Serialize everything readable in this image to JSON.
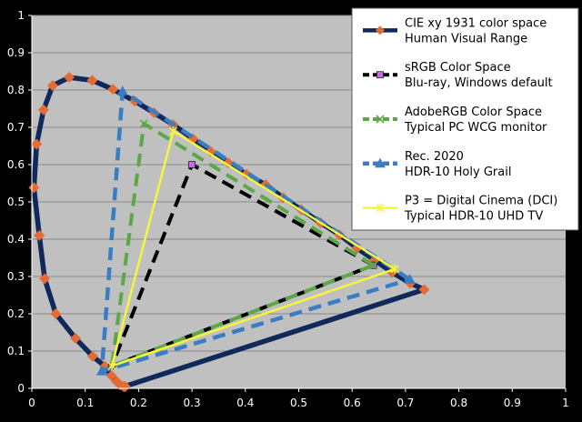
{
  "chart_data": {
    "type": "scatter",
    "title": "",
    "xlabel": "",
    "ylabel": "",
    "xlim": [
      0,
      1
    ],
    "ylim": [
      0,
      1
    ],
    "x_ticks": [
      "0",
      "0.1",
      "0.2",
      "0.3",
      "0.4",
      "0.5",
      "0.6",
      "0.7",
      "0.8",
      "0.9",
      "1"
    ],
    "y_ticks": [
      "0",
      "0.1",
      "0.2",
      "0.3",
      "0.4",
      "0.5",
      "0.6",
      "0.7",
      "0.8",
      "0.9",
      "1"
    ],
    "grid": "horizontal",
    "legend_position": "top-right",
    "background_color": "#000000",
    "plot_area_color": "#c0c0c0",
    "gridline_color": "#8a8a8a",
    "tick_label_color": "#ffffff",
    "series": [
      {
        "name": "CIE xy 1931 color space\nHuman Visual Range",
        "color": "#10285a",
        "marker_color": "#e46c34",
        "marker": "diamond",
        "line_style": "solid",
        "line_width": 5.5,
        "points": [
          [
            0.175,
            0.005
          ],
          [
            0.172,
            0.005
          ],
          [
            0.166,
            0.009
          ],
          [
            0.159,
            0.018
          ],
          [
            0.149,
            0.034
          ],
          [
            0.137,
            0.059
          ],
          [
            0.114,
            0.086
          ],
          [
            0.082,
            0.134
          ],
          [
            0.045,
            0.2
          ],
          [
            0.024,
            0.294
          ],
          [
            0.014,
            0.41
          ],
          [
            0.004,
            0.538
          ],
          [
            0.009,
            0.655
          ],
          [
            0.022,
            0.747
          ],
          [
            0.039,
            0.812
          ],
          [
            0.07,
            0.834
          ],
          [
            0.113,
            0.826
          ],
          [
            0.152,
            0.802
          ],
          [
            0.193,
            0.77
          ],
          [
            0.229,
            0.739
          ],
          [
            0.265,
            0.707
          ],
          [
            0.302,
            0.669
          ],
          [
            0.335,
            0.635
          ],
          [
            0.368,
            0.605
          ],
          [
            0.402,
            0.574
          ],
          [
            0.438,
            0.546
          ],
          [
            0.471,
            0.511
          ],
          [
            0.505,
            0.479
          ],
          [
            0.541,
            0.444
          ],
          [
            0.576,
            0.412
          ],
          [
            0.609,
            0.376
          ],
          [
            0.642,
            0.344
          ],
          [
            0.675,
            0.311
          ],
          [
            0.709,
            0.282
          ],
          [
            0.735,
            0.265
          ],
          [
            0.174,
            0.005
          ]
        ]
      },
      {
        "name": "sRGB Color Space\nBlu-ray, Windows default",
        "color": "#000000",
        "marker_color": "#cc66ee",
        "marker": "square",
        "line_style": "dashed",
        "line_width": 4,
        "points": [
          [
            0.64,
            0.33
          ],
          [
            0.3,
            0.6
          ],
          [
            0.15,
            0.06
          ],
          [
            0.64,
            0.33
          ]
        ]
      },
      {
        "name": "AdobeRGB Color Space\nTypical PC WCG monitor",
        "color": "#5aa846",
        "marker_color": "#5aa846",
        "marker": "x",
        "line_style": "dashed",
        "line_width": 4,
        "points": [
          [
            0.64,
            0.33
          ],
          [
            0.21,
            0.71
          ],
          [
            0.15,
            0.06
          ],
          [
            0.64,
            0.33
          ]
        ]
      },
      {
        "name": "Rec. 2020\nHDR-10 Holy Grail",
        "color": "#3a7dc2",
        "marker_color": "#3a7dc2",
        "marker": "triangle",
        "line_style": "dashed",
        "line_width": 4.5,
        "points": [
          [
            0.708,
            0.292
          ],
          [
            0.17,
            0.797
          ],
          [
            0.131,
            0.046
          ],
          [
            0.708,
            0.292
          ]
        ]
      },
      {
        "name": "P3 = Digital Cinema (DCI)\nTypical HDR-10 UHD TV",
        "color": "#f5f53c",
        "marker_color": "#f5f53c",
        "marker": "star",
        "line_style": "solid",
        "line_width": 2.5,
        "points": [
          [
            0.68,
            0.32
          ],
          [
            0.265,
            0.69
          ],
          [
            0.15,
            0.06
          ],
          [
            0.68,
            0.32
          ]
        ]
      }
    ]
  }
}
